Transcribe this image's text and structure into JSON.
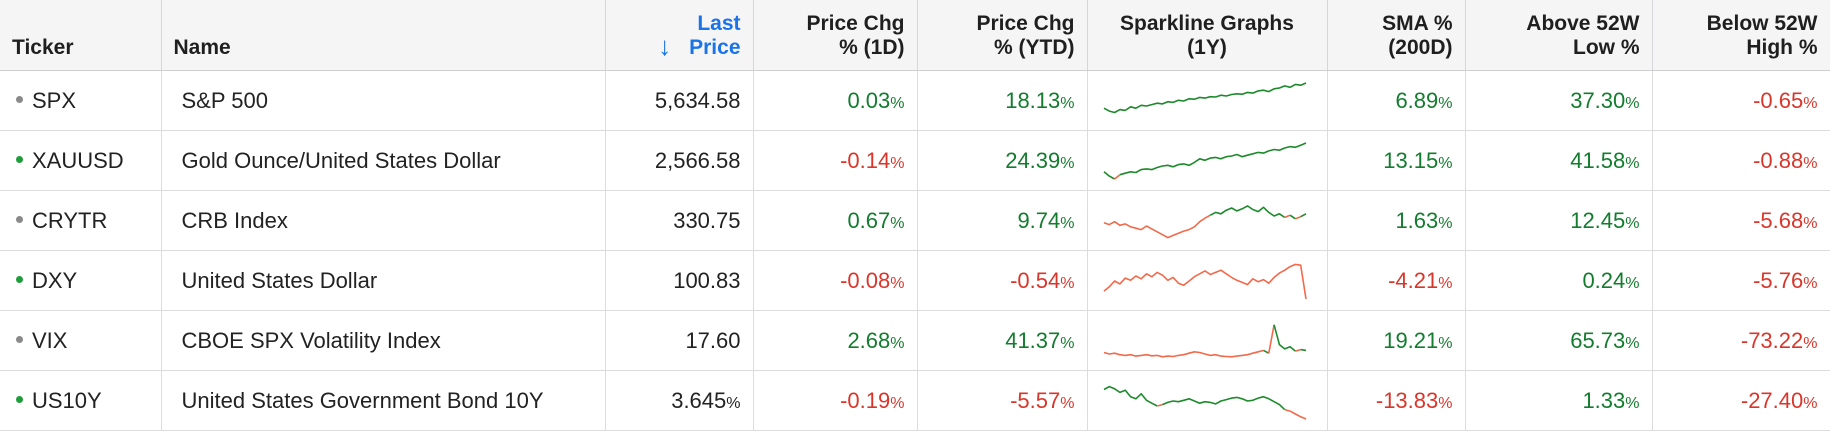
{
  "colors": {
    "positive": "#137c2e",
    "negative": "#d9362b",
    "sort_accent": "#1a73e8",
    "dot_gray": "#8a8a8a",
    "dot_green": "#1f9d3a"
  },
  "headers": {
    "ticker": "Ticker",
    "name": "Name",
    "sort_icon": "arrow-down-icon",
    "last_price_l1": "Last",
    "last_price_l2": "Price",
    "d1_l1": "Price Chg",
    "d1_l2": "% (1D)",
    "ytd_l1": "Price Chg",
    "ytd_l2": "% (YTD)",
    "spark_l1": "Sparkline Graphs",
    "spark_l2": "(1Y)",
    "sma_l1": "SMA %",
    "sma_l2": "(200D)",
    "above_l1": "Above 52W",
    "above_l2": "Low %",
    "below_l1": "Below 52W",
    "below_l2": "High %"
  },
  "rows": [
    {
      "ticker": "SPX",
      "dot": "gray",
      "name": "S&P 500",
      "last": "5,634.58",
      "last_pct": "",
      "d1": "0.03",
      "ytd": "18.13",
      "sma": "6.89",
      "above": "37.30",
      "below": "-0.65",
      "spark": [
        0.3,
        0.22,
        0.18,
        0.26,
        0.24,
        0.34,
        0.3,
        0.38,
        0.36,
        0.4,
        0.44,
        0.42,
        0.48,
        0.46,
        0.52,
        0.5,
        0.56,
        0.55,
        0.6,
        0.58,
        0.62,
        0.61,
        0.66,
        0.64,
        0.68,
        0.7,
        0.69,
        0.74,
        0.72,
        0.78,
        0.8,
        0.76,
        0.84,
        0.86,
        0.92,
        0.88,
        0.96,
        0.94,
        1.0
      ],
      "spark_split": 0.12
    },
    {
      "ticker": "XAUUSD",
      "dot": "green",
      "name": "Gold Ounce/United States Dollar",
      "last": "2,566.58",
      "last_pct": "",
      "d1": "-0.14",
      "ytd": "24.39",
      "sma": "13.15",
      "above": "41.58",
      "below": "-0.88",
      "spark": [
        0.2,
        0.08,
        0.0,
        0.12,
        0.16,
        0.2,
        0.18,
        0.26,
        0.28,
        0.26,
        0.32,
        0.36,
        0.38,
        0.34,
        0.4,
        0.42,
        0.38,
        0.46,
        0.56,
        0.52,
        0.58,
        0.6,
        0.56,
        0.62,
        0.64,
        0.68,
        0.62,
        0.66,
        0.7,
        0.74,
        0.72,
        0.78,
        0.82,
        0.8,
        0.86,
        0.9,
        0.88,
        0.94,
        1.0
      ],
      "spark_split": 0.04
    },
    {
      "ticker": "CRYTR",
      "dot": "gray",
      "name": "CRB Index",
      "last": "330.75",
      "last_pct": "",
      "d1": "0.67",
      "ytd": "9.74",
      "sma": "1.63",
      "above": "12.45",
      "below": "-5.68",
      "spark": [
        0.45,
        0.4,
        0.48,
        0.38,
        0.42,
        0.34,
        0.3,
        0.26,
        0.36,
        0.28,
        0.2,
        0.12,
        0.04,
        0.1,
        0.16,
        0.22,
        0.26,
        0.34,
        0.48,
        0.58,
        0.66,
        0.74,
        0.7,
        0.8,
        0.86,
        0.78,
        0.84,
        0.92,
        0.82,
        0.76,
        0.88,
        0.74,
        0.64,
        0.7,
        0.6,
        0.66,
        0.56,
        0.62,
        0.7
      ],
      "spark_split": 0.62
    },
    {
      "ticker": "DXY",
      "dot": "green",
      "name": "United States Dollar",
      "last": "100.83",
      "last_pct": "",
      "d1": "-0.08",
      "ytd": "-0.54",
      "sma": "-4.21",
      "above": "0.24",
      "below": "-5.76",
      "spark": [
        0.22,
        0.34,
        0.5,
        0.42,
        0.58,
        0.52,
        0.64,
        0.56,
        0.7,
        0.62,
        0.74,
        0.66,
        0.52,
        0.6,
        0.44,
        0.38,
        0.5,
        0.62,
        0.7,
        0.78,
        0.68,
        0.74,
        0.8,
        0.7,
        0.6,
        0.52,
        0.46,
        0.4,
        0.56,
        0.48,
        0.54,
        0.44,
        0.6,
        0.72,
        0.8,
        0.9,
        0.96,
        0.94,
        0.0
      ],
      "spark_split": 1.1
    },
    {
      "ticker": "VIX",
      "dot": "gray",
      "name": "CBOE SPX Volatility Index",
      "last": "17.60",
      "last_pct": "",
      "d1": "2.68",
      "ytd": "41.37",
      "sma": "19.21",
      "above": "65.73",
      "below": "-73.22",
      "spark": [
        0.18,
        0.14,
        0.16,
        0.12,
        0.1,
        0.12,
        0.08,
        0.1,
        0.12,
        0.09,
        0.1,
        0.06,
        0.08,
        0.07,
        0.1,
        0.12,
        0.16,
        0.2,
        0.18,
        0.14,
        0.1,
        0.12,
        0.08,
        0.07,
        0.06,
        0.08,
        0.1,
        0.12,
        0.16,
        0.2,
        0.24,
        0.16,
        0.95,
        0.4,
        0.28,
        0.34,
        0.22,
        0.26,
        0.24
      ],
      "spark_split": 0.24
    },
    {
      "ticker": "US10Y",
      "dot": "green",
      "name": "United States Government Bond 10Y",
      "last": "3.645",
      "last_pct": "%",
      "d1": "-0.19",
      "ytd": "-5.57",
      "sma": "-13.83",
      "above": "1.33",
      "below": "-27.40",
      "spark": [
        0.82,
        0.9,
        0.84,
        0.74,
        0.8,
        0.62,
        0.56,
        0.7,
        0.52,
        0.44,
        0.36,
        0.4,
        0.46,
        0.5,
        0.48,
        0.52,
        0.56,
        0.5,
        0.44,
        0.48,
        0.46,
        0.42,
        0.5,
        0.54,
        0.58,
        0.6,
        0.56,
        0.5,
        0.52,
        0.58,
        0.62,
        0.56,
        0.48,
        0.4,
        0.26,
        0.22,
        0.14,
        0.06,
        0.0
      ],
      "spark_split": 0.4
    }
  ]
}
